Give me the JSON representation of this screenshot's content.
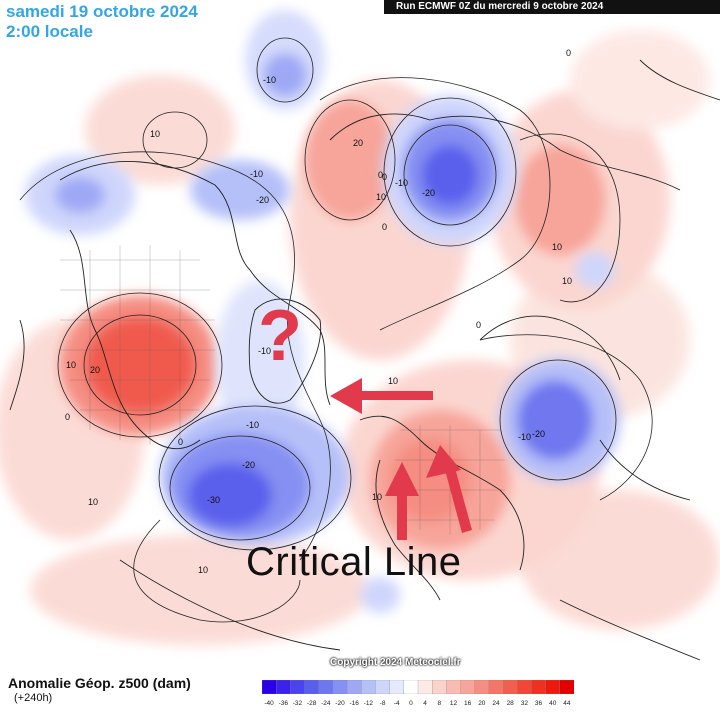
{
  "header": {
    "date": "samedi 19 octobre 2024",
    "time": "2:00 locale",
    "run": "Run ECMWF 0Z du mercredi 9 octobre 2024"
  },
  "field": {
    "title": "Anomalie Géop. z500 (dam)",
    "lead": "(+240h)"
  },
  "copyright": "Copyright 2024 Meteociel.fr",
  "legend": {
    "ticks": [
      "-40",
      "-36",
      "-32",
      "-28",
      "-24",
      "-20",
      "-16",
      "-12",
      "-8",
      "-4",
      "0",
      "4",
      "8",
      "12",
      "16",
      "20",
      "24",
      "28",
      "32",
      "36",
      "40",
      "44"
    ],
    "neg_colors": [
      "#2a00e6",
      "#3a22e8",
      "#4a44ea",
      "#5a5eec",
      "#6f77ef",
      "#8690f2",
      "#9ea8f5",
      "#b6c0f8",
      "#cfd6fb",
      "#e6eafd"
    ],
    "pos_colors": [
      "#ffffff",
      "#fde9e6",
      "#fbd2cc",
      "#f9bbb3",
      "#f7a49a",
      "#f58d82",
      "#f37669",
      "#f15f51",
      "#ef4839",
      "#ed3122",
      "#eb1a0a",
      "#e00000"
    ]
  },
  "contour_labels": [
    {
      "text": "10",
      "id": "c1"
    },
    {
      "text": "-10",
      "id": "c2"
    },
    {
      "text": "20",
      "id": "c3"
    },
    {
      "text": "0",
      "id": "c4"
    },
    {
      "text": "-10",
      "id": "c5"
    },
    {
      "text": "-20",
      "id": "c6"
    },
    {
      "text": "10",
      "id": "c7"
    },
    {
      "text": "0",
      "id": "c8"
    },
    {
      "text": "-10",
      "id": "c9"
    },
    {
      "text": "-20",
      "id": "c10"
    },
    {
      "text": "10",
      "id": "c11"
    },
    {
      "text": "20",
      "id": "c12"
    },
    {
      "text": "0",
      "id": "c13"
    },
    {
      "text": "10",
      "id": "c14"
    },
    {
      "text": "-10",
      "id": "c15"
    },
    {
      "text": "-10",
      "id": "c16"
    },
    {
      "text": "-20",
      "id": "c17"
    },
    {
      "text": "-30",
      "id": "c18"
    },
    {
      "text": "10",
      "id": "c19"
    },
    {
      "text": "10",
      "id": "c20"
    },
    {
      "text": "-10",
      "id": "c21"
    },
    {
      "text": "-20",
      "id": "c22"
    },
    {
      "text": "10",
      "id": "c23"
    },
    {
      "text": "0",
      "id": "c24"
    },
    {
      "text": "10",
      "id": "c25"
    },
    {
      "text": "0",
      "id": "c26"
    },
    {
      "text": "0",
      "id": "c27"
    },
    {
      "text": "10",
      "id": "c28"
    },
    {
      "text": "0",
      "id": "c29"
    }
  ],
  "annotations": {
    "question": "?",
    "critical": "Critical Line"
  }
}
